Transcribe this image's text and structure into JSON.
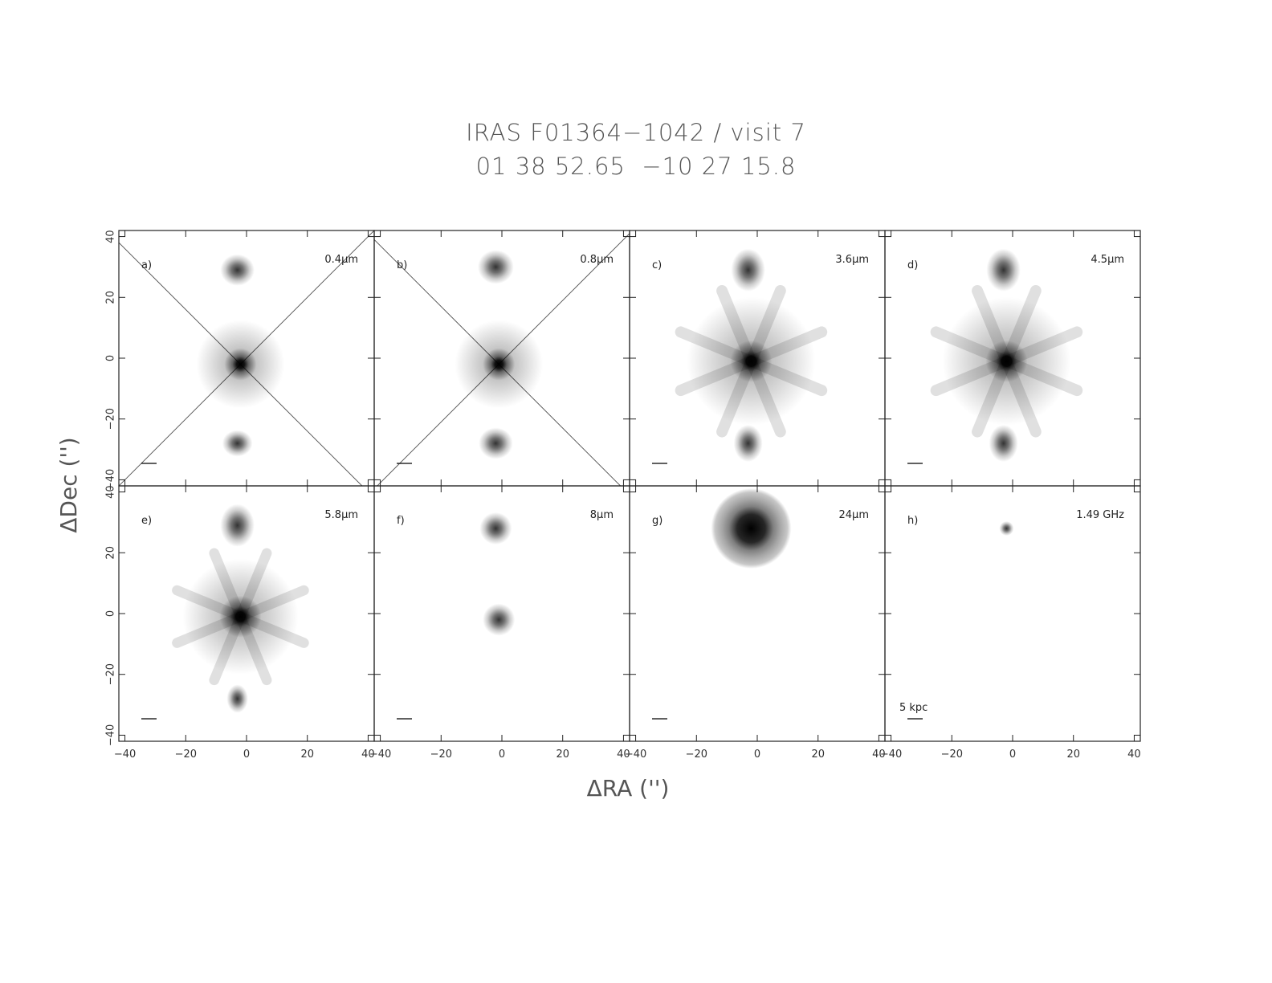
{
  "figure": {
    "title_line1": "IRAS F01364−1042 / visit 7",
    "title_line2": "01 38 52.65  −10 27 15.8",
    "xlabel": "ΔRA ('')",
    "ylabel": "ΔDec ('')",
    "scale_bar_label": "5 kpc"
  },
  "chart_data": {
    "type": "image-grid",
    "layout": {
      "rows": 2,
      "cols": 4
    },
    "xlim": [
      -42,
      42
    ],
    "ylim": [
      -42,
      42
    ],
    "xticks": [
      -40,
      -20,
      0,
      20,
      40
    ],
    "yticks": [
      -40,
      -20,
      0,
      20,
      40
    ],
    "xtick_labels": [
      "−40",
      "−20",
      "0",
      "20",
      "40"
    ],
    "ytick_labels": [
      "−40",
      "−20",
      "0",
      "20",
      "40"
    ],
    "xlabel": "ΔRA ('')",
    "ylabel": "ΔDec ('')",
    "panels": [
      {
        "label": "a)",
        "band": "0.4μm",
        "style": "optical",
        "sources": [
          {
            "x": -2,
            "y": -2,
            "strength": 1.0
          },
          {
            "x": -3,
            "y": 29,
            "strength": 0.6
          },
          {
            "x": -3,
            "y": -28,
            "strength": 0.4
          }
        ]
      },
      {
        "label": "b)",
        "band": "0.8μm",
        "style": "optical",
        "sources": [
          {
            "x": -1,
            "y": -2,
            "strength": 1.0
          },
          {
            "x": -2,
            "y": 30,
            "strength": 0.7
          },
          {
            "x": -2,
            "y": -28,
            "strength": 0.6
          }
        ]
      },
      {
        "label": "c)",
        "band": "3.6μm",
        "style": "irac",
        "sources": [
          {
            "x": -2,
            "y": -1,
            "strength": 1.0
          },
          {
            "x": -3,
            "y": 29,
            "strength": 0.7
          },
          {
            "x": -3,
            "y": -28,
            "strength": 0.5
          }
        ]
      },
      {
        "label": "d)",
        "band": "4.5μm",
        "style": "irac",
        "sources": [
          {
            "x": -2,
            "y": -1,
            "strength": 1.0
          },
          {
            "x": -3,
            "y": 29,
            "strength": 0.7
          },
          {
            "x": -3,
            "y": -28,
            "strength": 0.5
          }
        ]
      },
      {
        "label": "e)",
        "band": "5.8μm",
        "style": "irac",
        "sources": [
          {
            "x": -2,
            "y": -1,
            "strength": 0.9
          },
          {
            "x": -3,
            "y": 29,
            "strength": 0.7
          },
          {
            "x": -3,
            "y": -28,
            "strength": 0.2
          }
        ]
      },
      {
        "label": "f)",
        "band": "8μm",
        "style": "compact",
        "sources": [
          {
            "x": -1,
            "y": -2,
            "strength": 0.8
          },
          {
            "x": -2,
            "y": 28,
            "strength": 0.8
          }
        ]
      },
      {
        "label": "g)",
        "band": "24μm",
        "style": "mips",
        "sources": [
          {
            "x": -2,
            "y": 28,
            "strength": 1.0
          }
        ]
      },
      {
        "label": "h)",
        "band": "1.49 GHz",
        "style": "radio",
        "sources": [
          {
            "x": -2,
            "y": 28,
            "strength": 0.7
          }
        ]
      }
    ]
  },
  "colors": {
    "frame": "#222222",
    "background": "#ffffff",
    "ink": "#000000"
  }
}
